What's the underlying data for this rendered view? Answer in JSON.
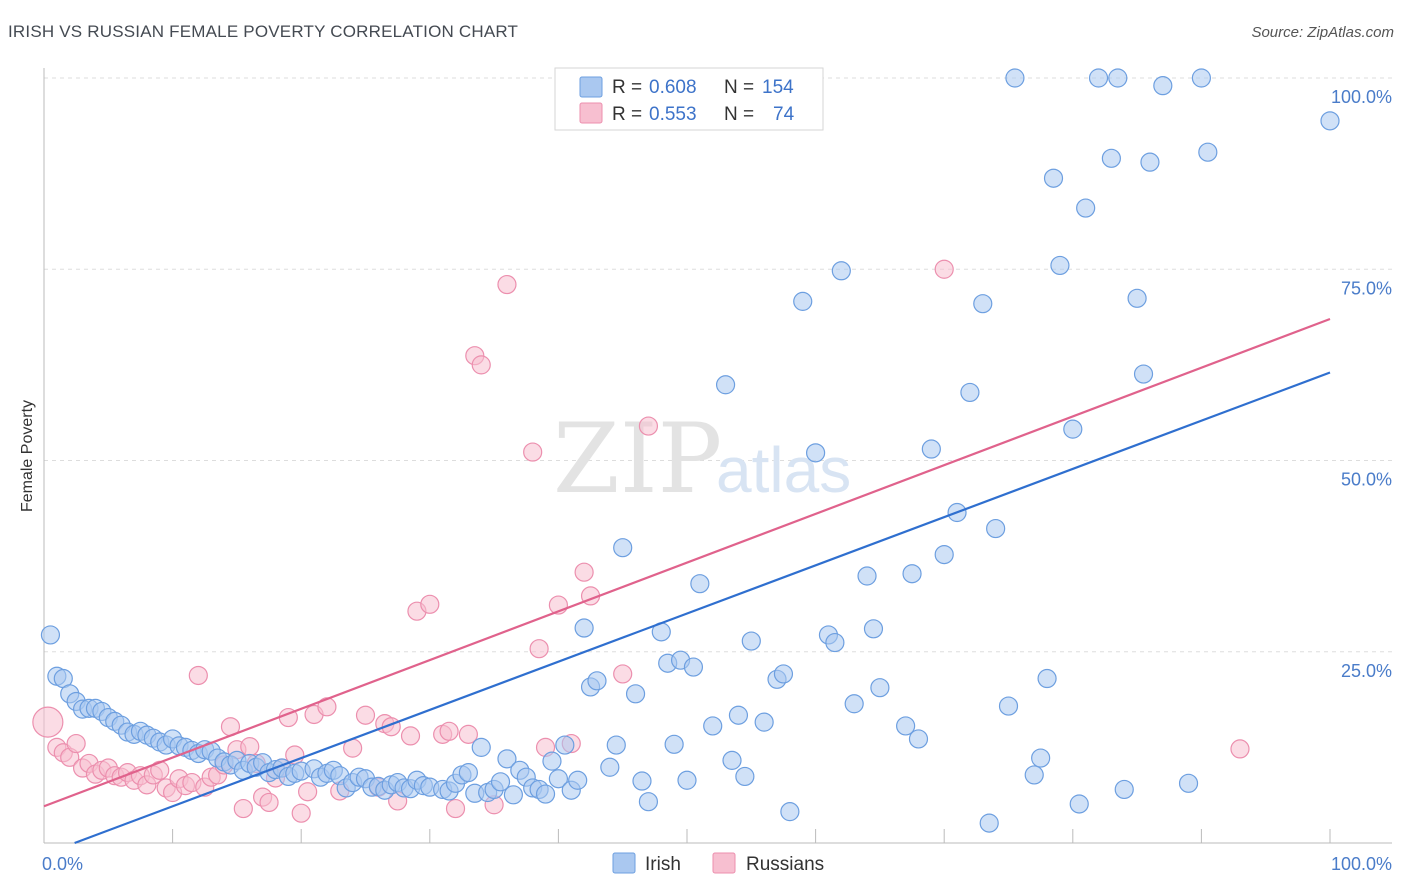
{
  "title": "IRISH VS RUSSIAN FEMALE POVERTY CORRELATION CHART",
  "source": "Source: ZipAtlas.com",
  "watermark": {
    "zip": "ZIP",
    "atlas": "atlas"
  },
  "colors": {
    "irish_fill": "#aac8f0",
    "irish_stroke": "#6d9fe0",
    "irish_line": "#2f6fcf",
    "russian_fill": "#f7bfd0",
    "russian_stroke": "#ec8fae",
    "russian_line": "#e0628c",
    "grid": "#dddddd",
    "tick": "#4a7cc9"
  },
  "legend": {
    "rows": [
      {
        "r_label": "R = ",
        "r_value": "0.608",
        "n_label": "N = ",
        "n_value": "154"
      },
      {
        "r_label": "R = ",
        "r_value": "0.553",
        "n_label": "N = ",
        "n_value": "74"
      }
    ]
  },
  "chart_data": {
    "type": "scatter",
    "title": "IRISH VS RUSSIAN FEMALE POVERTY CORRELATION CHART",
    "xlabel": "",
    "ylabel": "Female Poverty",
    "xlim": [
      0,
      100
    ],
    "ylim": [
      0,
      100
    ],
    "x_tick_labels": [
      "0.0%",
      "100.0%"
    ],
    "y_ticks": [
      25,
      50,
      75,
      100
    ],
    "y_tick_labels": [
      "25.0%",
      "50.0%",
      "75.0%",
      "100.0%"
    ],
    "grid": true,
    "legend_position": "top-center",
    "series": [
      {
        "name": "Irish",
        "r": 0.608,
        "n": 154,
        "trend": {
          "x": [
            0,
            100
          ],
          "y": [
            -1.5,
            61.5
          ]
        },
        "points": [
          [
            0.5,
            27.2
          ],
          [
            1,
            21.8
          ],
          [
            1.5,
            21.5
          ],
          [
            2,
            19.5
          ],
          [
            2.5,
            18.5
          ],
          [
            3,
            17.5
          ],
          [
            3.5,
            17.6
          ],
          [
            4,
            17.6
          ],
          [
            4.5,
            17.2
          ],
          [
            5,
            16.4
          ],
          [
            5.5,
            15.9
          ],
          [
            6,
            15.4
          ],
          [
            6.5,
            14.5
          ],
          [
            7,
            14.2
          ],
          [
            7.5,
            14.6
          ],
          [
            8,
            14.1
          ],
          [
            8.5,
            13.7
          ],
          [
            9,
            13.2
          ],
          [
            9.5,
            12.8
          ],
          [
            10,
            13.6
          ],
          [
            10.5,
            12.7
          ],
          [
            11,
            12.5
          ],
          [
            11.5,
            12.1
          ],
          [
            12,
            11.7
          ],
          [
            12.5,
            12.2
          ],
          [
            13,
            12.0
          ],
          [
            13.5,
            11.1
          ],
          [
            14,
            10.6
          ],
          [
            14.5,
            10.2
          ],
          [
            15,
            10.8
          ],
          [
            15.5,
            9.5
          ],
          [
            16,
            10.4
          ],
          [
            16.5,
            9.9
          ],
          [
            17,
            10.5
          ],
          [
            17.5,
            9.2
          ],
          [
            18,
            9.6
          ],
          [
            18.5,
            9.8
          ],
          [
            19,
            8.7
          ],
          [
            19.5,
            9.1
          ],
          [
            20,
            9.4
          ],
          [
            21,
            9.7
          ],
          [
            21.5,
            8.6
          ],
          [
            22,
            9.1
          ],
          [
            22.5,
            9.5
          ],
          [
            23,
            8.8
          ],
          [
            23.5,
            7.2
          ],
          [
            24,
            7.9
          ],
          [
            24.5,
            8.6
          ],
          [
            25,
            8.4
          ],
          [
            25.5,
            7.3
          ],
          [
            26,
            7.4
          ],
          [
            26.5,
            6.9
          ],
          [
            27,
            7.6
          ],
          [
            27.5,
            7.9
          ],
          [
            28,
            7.2
          ],
          [
            28.5,
            7.1
          ],
          [
            29,
            8.2
          ],
          [
            29.5,
            7.5
          ],
          [
            30,
            7.3
          ],
          [
            31,
            7.0
          ],
          [
            31.5,
            6.8
          ],
          [
            32,
            7.8
          ],
          [
            32.5,
            8.9
          ],
          [
            33,
            9.2
          ],
          [
            33.5,
            6.5
          ],
          [
            34,
            12.5
          ],
          [
            34.5,
            6.6
          ],
          [
            35,
            7.0
          ],
          [
            35.5,
            8.0
          ],
          [
            36,
            11.0
          ],
          [
            36.5,
            6.3
          ],
          [
            37,
            9.5
          ],
          [
            37.5,
            8.6
          ],
          [
            38,
            7.2
          ],
          [
            38.5,
            7.0
          ],
          [
            39,
            6.4
          ],
          [
            39.5,
            10.7
          ],
          [
            40,
            8.4
          ],
          [
            40.5,
            12.8
          ],
          [
            41,
            6.9
          ],
          [
            41.5,
            8.2
          ],
          [
            42,
            28.1
          ],
          [
            42.5,
            20.4
          ],
          [
            43,
            21.2
          ],
          [
            44,
            9.9
          ],
          [
            44.5,
            12.8
          ],
          [
            45,
            38.6
          ],
          [
            46,
            19.5
          ],
          [
            46.5,
            8.1
          ],
          [
            47,
            5.4
          ],
          [
            48,
            27.6
          ],
          [
            48.5,
            23.5
          ],
          [
            49,
            12.9
          ],
          [
            49.5,
            23.9
          ],
          [
            50,
            8.2
          ],
          [
            50.5,
            23.0
          ],
          [
            51,
            33.9
          ],
          [
            52,
            15.3
          ],
          [
            53,
            59.9
          ],
          [
            53.5,
            10.8
          ],
          [
            54,
            16.7
          ],
          [
            54.5,
            8.7
          ],
          [
            55,
            26.4
          ],
          [
            56,
            15.8
          ],
          [
            57,
            21.4
          ],
          [
            57.5,
            22.1
          ],
          [
            58,
            4.1
          ],
          [
            59,
            70.8
          ],
          [
            60,
            51.0
          ],
          [
            61,
            27.2
          ],
          [
            61.5,
            26.2
          ],
          [
            62,
            74.8
          ],
          [
            63,
            18.2
          ],
          [
            64,
            34.9
          ],
          [
            64.5,
            28.0
          ],
          [
            65,
            20.3
          ],
          [
            67,
            15.3
          ],
          [
            67.5,
            35.2
          ],
          [
            68,
            13.6
          ],
          [
            69,
            51.5
          ],
          [
            70,
            37.7
          ],
          [
            71,
            43.2
          ],
          [
            72,
            58.9
          ],
          [
            73,
            70.5
          ],
          [
            73.5,
            2.6
          ],
          [
            74,
            41.1
          ],
          [
            75,
            17.9
          ],
          [
            75.5,
            100
          ],
          [
            77,
            8.9
          ],
          [
            77.5,
            11.1
          ],
          [
            78,
            21.5
          ],
          [
            78.5,
            86.9
          ],
          [
            79,
            75.5
          ],
          [
            80,
            54.1
          ],
          [
            80.5,
            5.1
          ],
          [
            81,
            83.0
          ],
          [
            82,
            100
          ],
          [
            83,
            89.5
          ],
          [
            83.5,
            100
          ],
          [
            84,
            7.0
          ],
          [
            85,
            71.2
          ],
          [
            85.5,
            61.3
          ],
          [
            86,
            89.0
          ],
          [
            87,
            99.0
          ],
          [
            89,
            7.8
          ],
          [
            90,
            100
          ],
          [
            90.5,
            90.3
          ],
          [
            100,
            94.4
          ]
        ]
      },
      {
        "name": "Russians",
        "r": 0.553,
        "n": 74,
        "trend": {
          "x": [
            0,
            100
          ],
          "y": [
            4.8,
            68.5
          ]
        },
        "points": [
          [
            0.3,
            15.8
          ],
          [
            1,
            12.5
          ],
          [
            1.5,
            11.8
          ],
          [
            2,
            11.2
          ],
          [
            2.5,
            13.0
          ],
          [
            3,
            9.8
          ],
          [
            3.5,
            10.4
          ],
          [
            4,
            9.0
          ],
          [
            4.5,
            9.5
          ],
          [
            5,
            9.8
          ],
          [
            5.5,
            8.8
          ],
          [
            6,
            8.6
          ],
          [
            6.5,
            9.2
          ],
          [
            7,
            8.2
          ],
          [
            7.5,
            8.8
          ],
          [
            8,
            7.6
          ],
          [
            8.5,
            8.9
          ],
          [
            9,
            9.5
          ],
          [
            9.5,
            7.2
          ],
          [
            10,
            6.6
          ],
          [
            10.5,
            8.4
          ],
          [
            11,
            7.5
          ],
          [
            11.5,
            7.9
          ],
          [
            12,
            21.9
          ],
          [
            12.5,
            7.3
          ],
          [
            13,
            8.6
          ],
          [
            13.5,
            8.9
          ],
          [
            14,
            10.2
          ],
          [
            14.5,
            15.2
          ],
          [
            15,
            12.2
          ],
          [
            15.5,
            4.5
          ],
          [
            16,
            12.6
          ],
          [
            16.5,
            10.4
          ],
          [
            17,
            6.0
          ],
          [
            17.5,
            5.3
          ],
          [
            18,
            8.5
          ],
          [
            18.5,
            9.8
          ],
          [
            19,
            16.4
          ],
          [
            19.5,
            11.5
          ],
          [
            20,
            3.9
          ],
          [
            20.5,
            6.7
          ],
          [
            21,
            16.8
          ],
          [
            22,
            17.8
          ],
          [
            23,
            6.8
          ],
          [
            24,
            12.4
          ],
          [
            25,
            16.7
          ],
          [
            26,
            7.3
          ],
          [
            26.5,
            15.6
          ],
          [
            27,
            15.2
          ],
          [
            27.5,
            5.5
          ],
          [
            28.5,
            14.0
          ],
          [
            29,
            30.3
          ],
          [
            30,
            31.2
          ],
          [
            31,
            14.2
          ],
          [
            31.5,
            14.6
          ],
          [
            32,
            4.5
          ],
          [
            33,
            14.2
          ],
          [
            33.5,
            63.7
          ],
          [
            34,
            62.5
          ],
          [
            35,
            5.0
          ],
          [
            36,
            73.0
          ],
          [
            38,
            51.1
          ],
          [
            38.5,
            25.4
          ],
          [
            39,
            12.5
          ],
          [
            40,
            31.1
          ],
          [
            41,
            13.0
          ],
          [
            42,
            35.4
          ],
          [
            42.5,
            32.3
          ],
          [
            45,
            22.1
          ],
          [
            47,
            54.5
          ],
          [
            70,
            75.0
          ],
          [
            93,
            12.3
          ]
        ]
      }
    ]
  },
  "bottom_legend": {
    "items": [
      "Irish",
      "Russians"
    ]
  }
}
